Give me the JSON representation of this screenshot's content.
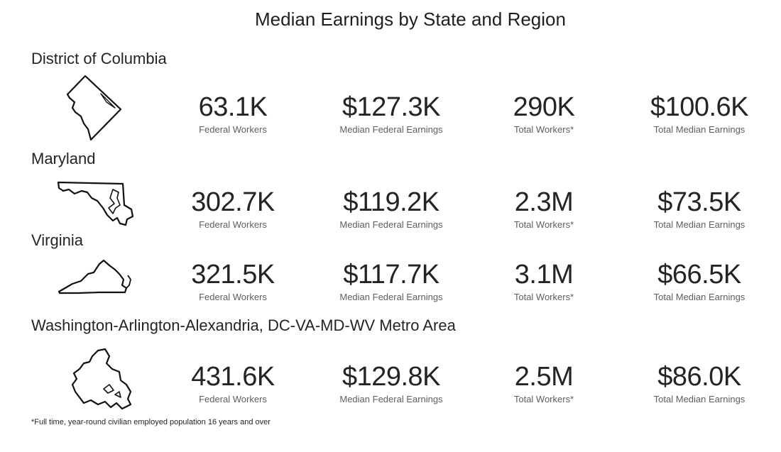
{
  "title": "Median Earnings by State and Region",
  "footnote": "*Full time, year-round civilian employed population 16 years and over",
  "regions": [
    {
      "name": "District of Columbia",
      "icon": "dc-outline-icon",
      "kpis": [
        {
          "value": "63.1K",
          "label": "Federal Workers"
        },
        {
          "value": "$127.3K",
          "label": "Median Federal Earnings"
        },
        {
          "value": "290K",
          "label": "Total Workers*"
        },
        {
          "value": "$100.6K",
          "label": "Total Median Earnings"
        }
      ]
    },
    {
      "name": "Maryland",
      "icon": "maryland-outline-icon",
      "kpis": [
        {
          "value": "302.7K",
          "label": "Federal Workers"
        },
        {
          "value": "$119.2K",
          "label": "Median Federal Earnings"
        },
        {
          "value": "2.3M",
          "label": "Total Workers*"
        },
        {
          "value": "$73.5K",
          "label": "Total Median Earnings"
        }
      ]
    },
    {
      "name": "Virginia",
      "icon": "virginia-outline-icon",
      "kpis": [
        {
          "value": "321.5K",
          "label": "Federal Workers"
        },
        {
          "value": "$117.7K",
          "label": "Median Federal Earnings"
        },
        {
          "value": "3.1M",
          "label": "Total Workers*"
        },
        {
          "value": "$66.5K",
          "label": "Total Median Earnings"
        }
      ]
    },
    {
      "name": "Washington-Arlington-Alexandria, DC-VA-MD-WV Metro Area",
      "icon": "metro-area-outline-icon",
      "kpis": [
        {
          "value": "431.6K",
          "label": "Federal Workers"
        },
        {
          "value": "$129.8K",
          "label": "Median Federal Earnings"
        },
        {
          "value": "2.5M",
          "label": "Total Workers*"
        },
        {
          "value": "$86.0K",
          "label": "Total Median Earnings"
        }
      ]
    }
  ]
}
